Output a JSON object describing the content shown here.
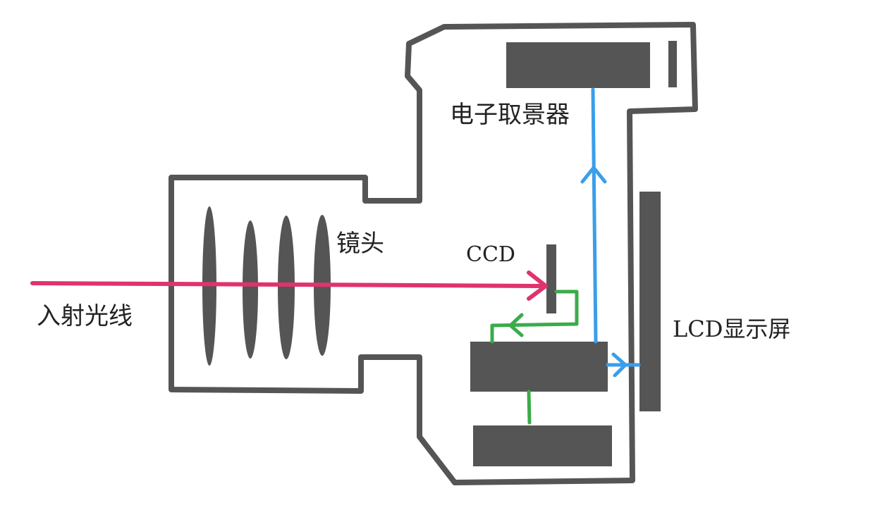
{
  "labels": {
    "incident_light": "入射光线",
    "lens": "镜头",
    "ccd": "CCD",
    "evf": "电子取景器",
    "lcd": "LCD显示屏"
  },
  "colors": {
    "body_outline": "#555555",
    "components": "#555555",
    "light_path": "#e0336e",
    "display_path": "#3a9eea",
    "signal_path": "#3bab4a"
  }
}
